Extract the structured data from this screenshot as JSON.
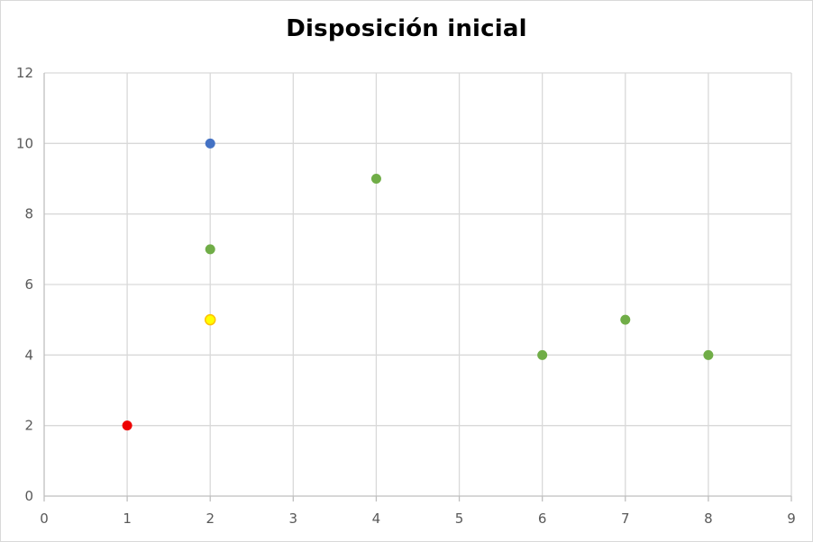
{
  "chart_data": {
    "type": "scatter",
    "title": "Disposición inicial",
    "xlabel": "",
    "ylabel": "",
    "xlim": [
      0,
      9
    ],
    "ylim": [
      0,
      12
    ],
    "x_ticks": [
      0,
      1,
      2,
      3,
      4,
      5,
      6,
      7,
      8,
      9
    ],
    "y_ticks": [
      0,
      2,
      4,
      6,
      8,
      10,
      12
    ],
    "grid": true,
    "legend": "none",
    "points": [
      {
        "x": 1,
        "y": 2,
        "color": "#ee0000"
      },
      {
        "x": 2,
        "y": 10,
        "color": "#4472c4"
      },
      {
        "x": 2,
        "y": 7,
        "color": "#70ad47"
      },
      {
        "x": 2,
        "y": 5,
        "color": "#ffff00",
        "stroke": "#ffc000"
      },
      {
        "x": 4,
        "y": 9,
        "color": "#70ad47"
      },
      {
        "x": 6,
        "y": 4,
        "color": "#70ad47"
      },
      {
        "x": 7,
        "y": 5,
        "color": "#70ad47"
      },
      {
        "x": 8,
        "y": 4,
        "color": "#70ad47"
      }
    ],
    "colors": {
      "grid": "#d9d9d9",
      "axis": "#bfbfbf",
      "tick_text": "#595959"
    }
  }
}
